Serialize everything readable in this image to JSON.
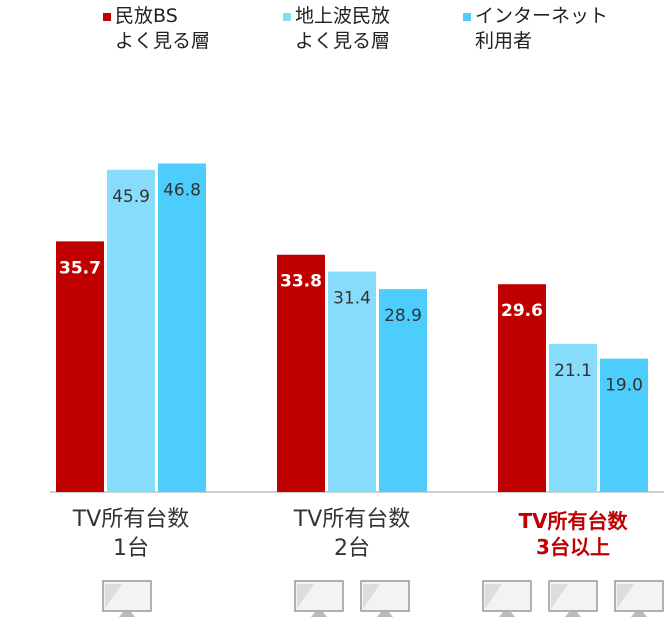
{
  "chart_data": {
    "type": "bar",
    "categories": [
      "TV所有台数\n1台",
      "TV所有台数\n2台",
      "TV所有台数\n3台以上"
    ],
    "highlight_category": 2,
    "series": [
      {
        "name": "民放BS\nよく見る層",
        "color": "#c00000",
        "values": [
          35.7,
          33.8,
          29.6
        ],
        "value_labels": [
          "35.7",
          "33.8",
          "29.6"
        ]
      },
      {
        "name": "地上波民放\nよく見る層",
        "color": "#87dcfc",
        "values": [
          45.9,
          31.4,
          21.1
        ],
        "value_labels": [
          "45.9",
          "31.4",
          "21.1"
        ]
      },
      {
        "name": "インターネット\n利用者",
        "color": "#4dcdfc",
        "values": [
          46.8,
          28.9,
          19.0
        ],
        "value_labels": [
          "46.8",
          "28.9",
          "19.0"
        ]
      }
    ],
    "ylim": [
      0,
      50
    ]
  }
}
